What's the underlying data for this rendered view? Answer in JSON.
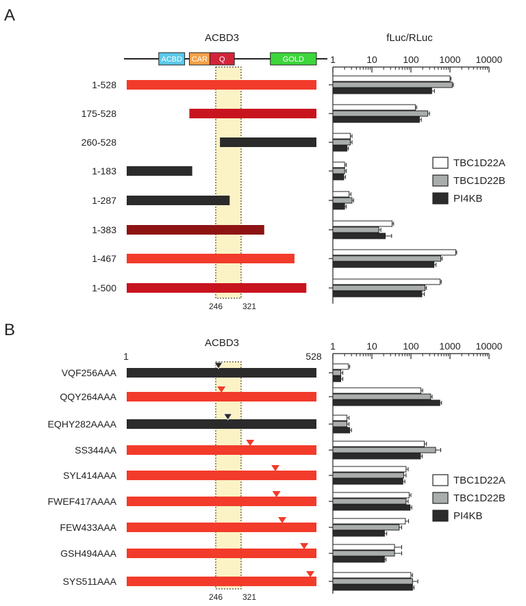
{
  "chart_data": [
    {
      "type": "bar",
      "panel": "A",
      "title": "ACBD3",
      "axis_title": "fLuc/RLuc",
      "x_scale": "log",
      "xlim": [
        1,
        10000
      ],
      "x_ticks": [
        "1",
        "10",
        "100",
        "1000",
        "10000"
      ],
      "domains": [
        {
          "label": "ACBD",
          "start": 90,
          "end": 162,
          "color": "#5bc8e8"
        },
        {
          "label": "CAR",
          "start": 175,
          "end": 232,
          "color": "#f4a24a"
        },
        {
          "label": "Q",
          "start": 232,
          "end": 300,
          "color": "#d2253a"
        },
        {
          "label": "GOLD",
          "start": 400,
          "end": 528,
          "color": "#3dd63d"
        }
      ],
      "protein_length": 528,
      "shaded_region": [
        "246",
        "321"
      ],
      "constructs": [
        {
          "label": "1-528",
          "start": 1,
          "end": 528,
          "color": "#f23b2a"
        },
        {
          "label": "175-528",
          "start": 175,
          "end": 528,
          "color": "#c8141e"
        },
        {
          "label": "260-528",
          "start": 260,
          "end": 528,
          "color": "#2b2b2b"
        },
        {
          "label": "1-183",
          "start": 1,
          "end": 183,
          "color": "#2b2b2b"
        },
        {
          "label": "1-287",
          "start": 1,
          "end": 287,
          "color": "#2b2b2b"
        },
        {
          "label": "1-383",
          "start": 1,
          "end": 383,
          "color": "#8e1414"
        },
        {
          "label": "1-467",
          "start": 1,
          "end": 467,
          "color": "#f23b2a"
        },
        {
          "label": "1-500",
          "start": 1,
          "end": 500,
          "color": "#c8141e"
        }
      ],
      "legend": "right",
      "series": [
        {
          "name": "TBC1D22A",
          "color": "#ffffff",
          "values": [
            1000,
            130,
            2.8,
            2.0,
            2.6,
            33,
            1400,
            560
          ],
          "errors": [
            60,
            10,
            0.3,
            0.2,
            0.3,
            3,
            90,
            40
          ]
        },
        {
          "name": "TBC1D22B",
          "color": "#a9aeac",
          "values": [
            1150,
            270,
            2.8,
            2.0,
            3.1,
            15,
            580,
            230
          ],
          "errors": [
            80,
            30,
            0.3,
            0.2,
            0.3,
            2,
            50,
            20
          ]
        },
        {
          "name": "PI4KB",
          "color": "#2b2b2b",
          "values": [
            340,
            165,
            2.3,
            1.9,
            2.0,
            22,
            390,
            190
          ],
          "errors": [
            60,
            20,
            0.2,
            0.2,
            0.2,
            10,
            50,
            30
          ]
        }
      ]
    },
    {
      "type": "bar",
      "panel": "B",
      "title": "ACBD3",
      "x_scale": "log",
      "xlim": [
        1,
        10000
      ],
      "x_ticks": [
        "1",
        "10",
        "100",
        "1000",
        "10000"
      ],
      "protein_length": 528,
      "bar_start_label": "1",
      "bar_end_label": "528",
      "shaded_region": [
        "246",
        "321"
      ],
      "constructs": [
        {
          "label": "VQF256AAA",
          "site": 256,
          "color": "#2b2b2b"
        },
        {
          "label": "QQY264AAA",
          "site": 264,
          "color": "#f23b2a"
        },
        {
          "label": "EQHY282AAAA",
          "site": 282,
          "color": "#2b2b2b"
        },
        {
          "label": "SS344AA",
          "site": 344,
          "color": "#f23b2a"
        },
        {
          "label": "SYL414AAA",
          "site": 414,
          "color": "#f23b2a"
        },
        {
          "label": "FWEF417AAAA",
          "site": 417,
          "color": "#f23b2a"
        },
        {
          "label": "FEW433AAA",
          "site": 433,
          "color": "#f23b2a"
        },
        {
          "label": "GSH494AAA",
          "site": 494,
          "color": "#f23b2a"
        },
        {
          "label": "SYS511AAA",
          "site": 511,
          "color": "#f23b2a"
        }
      ],
      "legend": "right",
      "series": [
        {
          "name": "TBC1D22A",
          "color": "#ffffff",
          "values": [
            2.5,
            180,
            2.3,
            220,
            75,
            90,
            72,
            38,
            100
          ],
          "errors": [
            0.2,
            20,
            0.3,
            30,
            10,
            10,
            15,
            20,
            10
          ]
        },
        {
          "name": "TBC1D22B",
          "color": "#a9aeac",
          "values": [
            1.6,
            320,
            2.3,
            430,
            65,
            75,
            50,
            38,
            110
          ],
          "errors": [
            0.2,
            30,
            0.3,
            150,
            10,
            10,
            8,
            20,
            40
          ]
        },
        {
          "name": "PI4KB",
          "color": "#2b2b2b",
          "values": [
            1.6,
            550,
            2.7,
            175,
            62,
            95,
            21,
            21,
            110
          ],
          "errors": [
            0.2,
            60,
            0.3,
            20,
            8,
            10,
            3,
            2,
            10
          ]
        }
      ]
    }
  ],
  "panel_letters": [
    "A",
    "B"
  ]
}
